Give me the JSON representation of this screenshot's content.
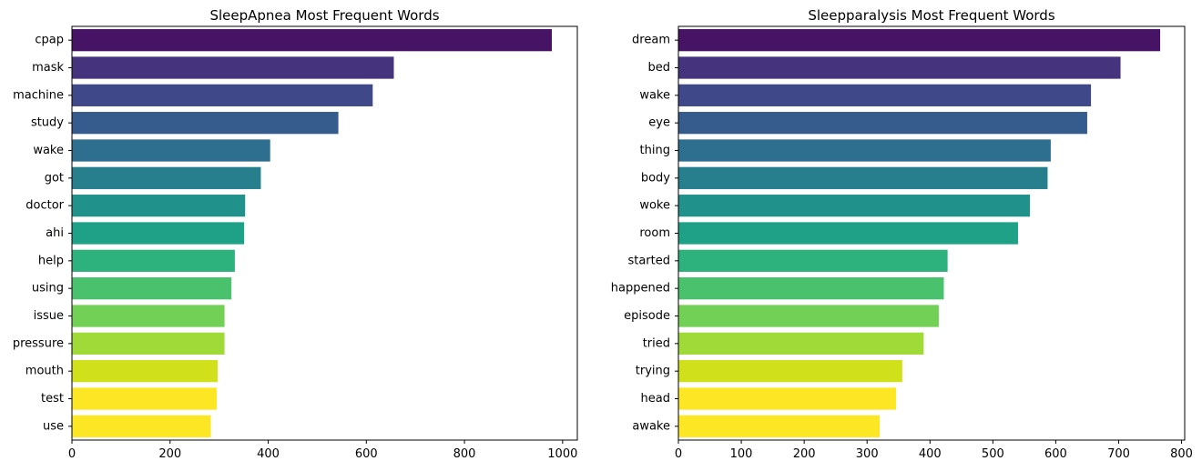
{
  "chart_data": [
    {
      "type": "bar",
      "orientation": "horizontal",
      "title": "SleepApnea Most Frequent Words",
      "xlabel": "",
      "ylabel": "",
      "categories": [
        "cpap",
        "mask",
        "machine",
        "study",
        "wake",
        "got",
        "doctor",
        "ahi",
        "help",
        "using",
        "issue",
        "pressure",
        "mouth",
        "test",
        "use"
      ],
      "values": [
        978,
        656,
        613,
        543,
        404,
        385,
        353,
        351,
        332,
        325,
        311,
        311,
        297,
        295,
        283
      ],
      "xlim": [
        0,
        1030
      ],
      "xticks": [
        0,
        200,
        400,
        600,
        800,
        1000
      ],
      "xtick_labels": [
        "0",
        "200",
        "400",
        "600",
        "800",
        "1000"
      ],
      "colormap": "viridis",
      "colors": [
        "#471365",
        "#46337e",
        "#3f4889",
        "#365c8d",
        "#2e6e8e",
        "#277f8e",
        "#21918c",
        "#1fa187",
        "#2db27d",
        "#4ac16d",
        "#73d056",
        "#a0da39",
        "#d0e11c",
        "#fde725",
        "#fde725"
      ],
      "grid": false
    },
    {
      "type": "bar",
      "orientation": "horizontal",
      "title": "Sleepparalysis Most Frequent Words",
      "xlabel": "",
      "ylabel": "",
      "categories": [
        "dream",
        "bed",
        "wake",
        "eye",
        "thing",
        "body",
        "woke",
        "room",
        "started",
        "happened",
        "episode",
        "tried",
        "trying",
        "head",
        "awake"
      ],
      "values": [
        766,
        703,
        656,
        650,
        592,
        587,
        559,
        540,
        428,
        422,
        414,
        390,
        356,
        346,
        320
      ],
      "xlim": [
        0,
        805
      ],
      "xticks": [
        0,
        100,
        200,
        300,
        400,
        500,
        600,
        700,
        800
      ],
      "xtick_labels": [
        "0",
        "100",
        "200",
        "300",
        "400",
        "500",
        "600",
        "700",
        "800"
      ],
      "colormap": "viridis",
      "grid": false
    }
  ],
  "palette": [
    "#471365",
    "#46337e",
    "#3f4889",
    "#365c8d",
    "#2e6e8e",
    "#277f8e",
    "#21918c",
    "#1fa187",
    "#2db27d",
    "#4ac16d",
    "#73d056",
    "#a0da39",
    "#d0e11c",
    "#fde725",
    "#fde725"
  ]
}
